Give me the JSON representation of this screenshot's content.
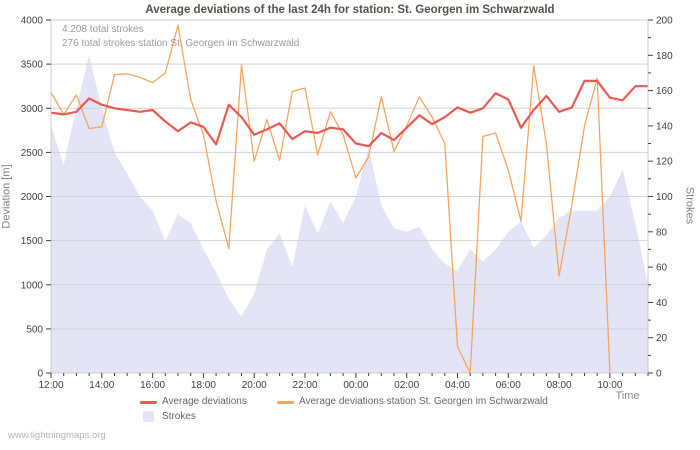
{
  "title": "Average deviations of the last 24h for station: St. Georgen im Schwarzwald",
  "annotations": {
    "total_strokes": "4.208 total strokes",
    "station_total_strokes": "276 total strokes station St. Georgen im Schwarzwald"
  },
  "axes": {
    "left_title": "Deviation [m]",
    "right_title": "Strokes",
    "x_title": "Time",
    "left_ticks": [
      0,
      500,
      1000,
      1500,
      2000,
      2500,
      3000,
      3500,
      4000
    ],
    "right_ticks": [
      0,
      20,
      40,
      60,
      80,
      100,
      120,
      140,
      160,
      180,
      200
    ],
    "x_ticks": [
      "12:00",
      "14:00",
      "16:00",
      "18:00",
      "20:00",
      "22:00",
      "00:00",
      "02:00",
      "04:00",
      "06:00",
      "08:00",
      "10:00"
    ]
  },
  "legend": {
    "items": [
      {
        "label": "Average deviations",
        "color": "#ea5a52",
        "type": "line"
      },
      {
        "label": "Average deviations station St. Georgen im Schwarzwald",
        "color": "#f5a55f",
        "type": "line"
      },
      {
        "label": "Strokes",
        "color": "#e4e4f7",
        "type": "area"
      }
    ]
  },
  "watermark": "www.lightningmaps.org",
  "colors": {
    "red_line": "#ea5a52",
    "orange_line": "#f5a55f",
    "strokes_area": "#e4e4f7",
    "grid": "#d2d2d2",
    "border": "#cccccc",
    "tick_text": "#3f3f3f",
    "axis_title": "#808080",
    "title_text": "#56524b",
    "annotation_text": "#9a9a9a",
    "watermark_text": "#b5b5b5"
  },
  "chart_data": {
    "type": "line",
    "title": "Average deviations of the last 24h for station: St. Georgen im Schwarzwald",
    "x": [
      "12:00",
      "12:30",
      "13:00",
      "13:30",
      "14:00",
      "14:30",
      "15:00",
      "15:30",
      "16:00",
      "16:30",
      "17:00",
      "17:30",
      "18:00",
      "18:30",
      "19:00",
      "19:30",
      "20:00",
      "20:30",
      "21:00",
      "21:30",
      "22:00",
      "22:30",
      "23:00",
      "23:30",
      "00:00",
      "00:30",
      "01:00",
      "01:30",
      "02:00",
      "02:30",
      "03:00",
      "03:30",
      "04:00",
      "04:30",
      "05:00",
      "05:30",
      "06:00",
      "06:30",
      "07:00",
      "07:30",
      "08:00",
      "08:30",
      "09:00",
      "09:30",
      "10:00",
      "10:30",
      "11:00",
      "11:30"
    ],
    "x_major_every": 4,
    "left_axis": {
      "label": "Deviation [m]",
      "range": [
        0,
        4000
      ],
      "tick_step": 500
    },
    "right_axis": {
      "label": "Strokes",
      "range": [
        0,
        200
      ],
      "tick_step": 20
    },
    "grid": "horizontal",
    "legend_position": "bottom",
    "series": [
      {
        "name": "Average deviations",
        "id": "average-deviations",
        "type": "line",
        "axis": "left",
        "color": "#ea5a52",
        "line_width": 2.2,
        "values": [
          2950,
          2930,
          2960,
          3110,
          3040,
          3000,
          2980,
          2960,
          2980,
          2850,
          2740,
          2840,
          2790,
          2590,
          3040,
          2900,
          2700,
          2760,
          2830,
          2650,
          2740,
          2720,
          2780,
          2760,
          2600,
          2570,
          2720,
          2640,
          2780,
          2920,
          2820,
          2900,
          3010,
          2950,
          3000,
          3170,
          3100,
          2780,
          2980,
          3140,
          2960,
          3010,
          3310,
          3310,
          3120,
          3090,
          3250,
          3250
        ]
      },
      {
        "name": "Average deviations station St. Georgen im Schwarzwald",
        "id": "station-deviations",
        "type": "line",
        "axis": "left",
        "color": "#f5a55f",
        "line_width": 1.3,
        "values": [
          3180,
          2930,
          3150,
          2770,
          2790,
          3380,
          3390,
          3350,
          3290,
          3400,
          3940,
          3100,
          2700,
          1950,
          1410,
          3490,
          2400,
          2870,
          2410,
          3190,
          3230,
          2470,
          2960,
          2700,
          2210,
          2450,
          3130,
          2510,
          2800,
          3130,
          2900,
          2600,
          300,
          0,
          2680,
          2720,
          2300,
          1720,
          3480,
          2600,
          1100,
          1900,
          2800,
          3340,
          0,
          null,
          null,
          null
        ]
      },
      {
        "name": "Strokes",
        "id": "strokes",
        "type": "area",
        "axis": "right",
        "color": "#e4e4f7",
        "values": [
          140,
          118,
          150,
          180,
          150,
          125,
          113,
          100,
          92,
          75,
          90,
          85,
          70,
          57,
          42,
          32,
          45,
          70,
          79,
          60,
          95,
          79,
          97,
          85,
          100,
          128,
          95,
          82,
          80,
          83,
          70,
          62,
          58,
          70,
          63,
          70,
          80,
          86,
          71,
          78,
          88,
          92,
          92,
          92,
          100,
          115,
          85,
          50
        ]
      }
    ]
  }
}
